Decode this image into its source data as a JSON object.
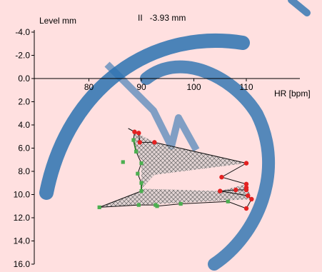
{
  "colors": {
    "background": "#ffe0e0",
    "watermark": "#2b72b0",
    "axis": "#000000",
    "loop_fill": "#c8c8c8",
    "loop_line": "#111111",
    "green_marker": "#4caf50",
    "red_marker": "#e32121",
    "green_line": "#2f7f2f"
  },
  "chart_data": {
    "type": "scatter",
    "ylabel": "Level mm",
    "xlabel": "HR [bpm]",
    "readout": "II   -3.93 mm",
    "xlim": [
      70,
      118
    ],
    "ylim": [
      -4.0,
      16.0
    ],
    "y_inverted": true,
    "x_ticks": [
      80,
      90,
      100,
      110
    ],
    "y_ticks": [
      "-4.0",
      "-2.0",
      "0.0",
      "2.0",
      "4.0",
      "6.0",
      "8.0",
      "10.0",
      "12.0",
      "14.0",
      "16.0"
    ],
    "loop_polygon": [
      [
        88.7,
        4.6
      ],
      [
        92.5,
        5.5
      ],
      [
        110,
        7.3
      ],
      [
        92.5,
        8.3
      ],
      [
        90,
        9.5
      ],
      [
        105,
        9.7
      ],
      [
        110,
        9.1
      ],
      [
        111,
        10.4
      ],
      [
        89.5,
        10.9
      ],
      [
        82,
        11.1
      ],
      [
        90,
        9.7
      ],
      [
        90,
        7.0
      ],
      [
        89,
        6.3
      ],
      [
        88.5,
        5.3
      ],
      [
        88.7,
        4.6
      ]
    ],
    "trace": [
      [
        87.5,
        4.3
      ],
      [
        88.7,
        4.6
      ],
      [
        89.5,
        4.7
      ],
      [
        89.7,
        5.5
      ],
      [
        92.5,
        5.5
      ],
      [
        110,
        7.3
      ],
      [
        105.3,
        8.5
      ],
      [
        110,
        9.1
      ],
      [
        110,
        9.4
      ],
      [
        110,
        9.6
      ],
      [
        108,
        9.6
      ],
      [
        105,
        9.7
      ],
      [
        110.3,
        10.1
      ],
      [
        111,
        10.4
      ],
      [
        110,
        11.2
      ],
      [
        106.5,
        10.6
      ],
      [
        97.5,
        10.8
      ],
      [
        93,
        11.0
      ],
      [
        92.7,
        10.9
      ],
      [
        89.5,
        10.9
      ],
      [
        82,
        11.1
      ],
      [
        90,
        9.7
      ],
      [
        90,
        9.0
      ],
      [
        89.3,
        8.2
      ],
      [
        90,
        7.3
      ],
      [
        89,
        6.3
      ],
      [
        88.5,
        5.3
      ],
      [
        88.7,
        4.6
      ]
    ],
    "series": [
      {
        "marker_color": "#e32121",
        "points": [
          [
            88.7,
            4.6
          ],
          [
            89.5,
            4.7
          ],
          [
            89.7,
            5.5
          ],
          [
            92.5,
            5.5
          ],
          [
            110,
            7.3
          ],
          [
            105.3,
            8.5
          ],
          [
            110,
            9.1
          ],
          [
            110,
            9.4
          ],
          [
            110,
            9.6
          ],
          [
            108,
            9.6
          ],
          [
            105,
            9.7
          ],
          [
            110.3,
            10.1
          ],
          [
            111,
            10.4
          ],
          [
            110,
            11.2
          ]
        ]
      },
      {
        "marker_color": "#4caf50",
        "points": [
          [
            88.5,
            5.3
          ],
          [
            89,
            6.3
          ],
          [
            86.5,
            7.2
          ],
          [
            90,
            7.3
          ],
          [
            89.3,
            8.2
          ],
          [
            90,
            9.0
          ],
          [
            90,
            9.7
          ],
          [
            82,
            11.1
          ],
          [
            89.5,
            10.9
          ],
          [
            92.7,
            10.9
          ],
          [
            93,
            11.0
          ],
          [
            97.5,
            10.8
          ],
          [
            106.5,
            10.6
          ]
        ]
      }
    ]
  }
}
